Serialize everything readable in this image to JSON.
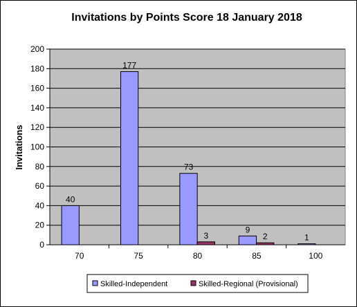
{
  "chart_data": {
    "type": "bar",
    "title": "Invitations by Points Score 18 January 2018",
    "xlabel": "",
    "ylabel": "Invitations",
    "categories": [
      "70",
      "75",
      "80",
      "85",
      "100"
    ],
    "series": [
      {
        "name": "Skilled-Independent",
        "values": [
          40,
          177,
          73,
          9,
          1
        ],
        "color": "#9999ff"
      },
      {
        "name": "Skilled-Regional (Provisional)",
        "values": [
          0,
          0,
          3,
          2,
          0
        ],
        "color": "#993366"
      }
    ],
    "data_labels": [
      [
        "40",
        "177",
        "73",
        "9",
        "1"
      ],
      [
        "",
        "",
        "3",
        "2",
        ""
      ]
    ],
    "ylim": [
      0,
      200
    ],
    "yticks": [
      0,
      20,
      40,
      60,
      80,
      100,
      120,
      140,
      160,
      180,
      200
    ],
    "grid": true,
    "legend_position": "bottom",
    "plot_background": "#c0c0c0"
  }
}
